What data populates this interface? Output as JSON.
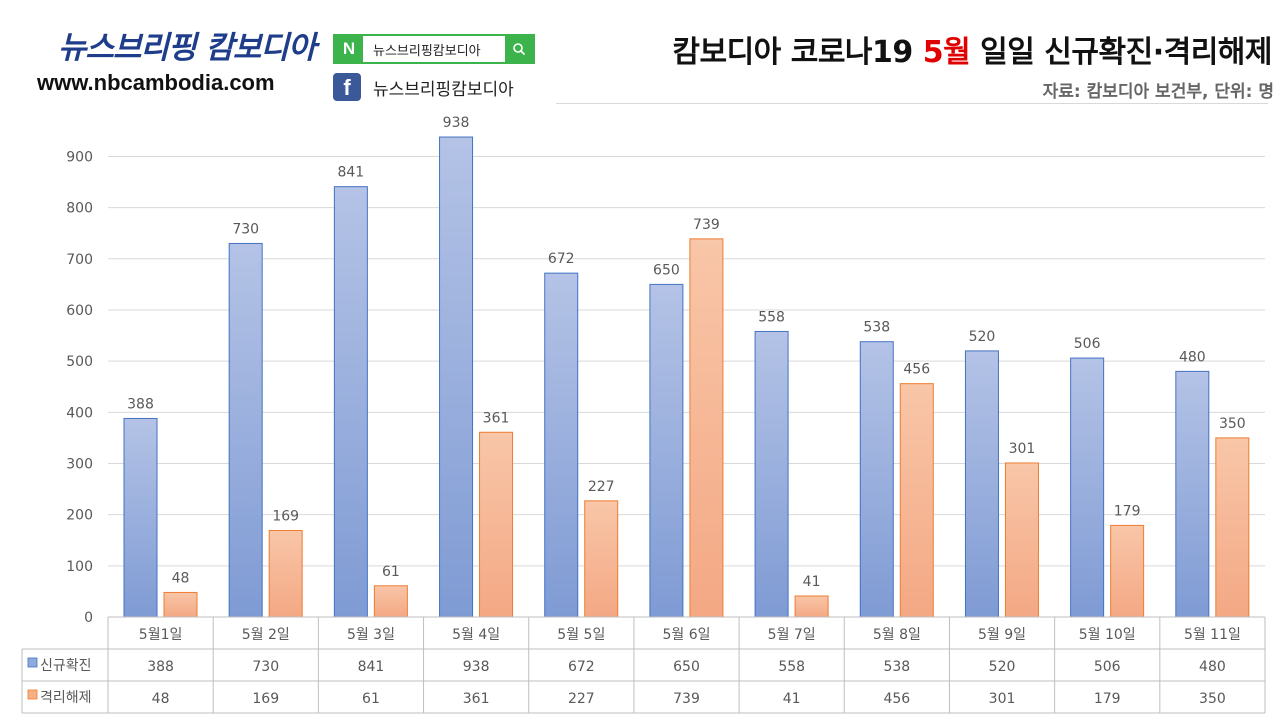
{
  "branding": {
    "title": "뉴스브리핑 캄보디아",
    "url": "www.nbcambodia.com",
    "naver_letter": "N",
    "naver_text": "뉴스브리핑캄보디아",
    "search_icon": "search-icon",
    "facebook_letter": "f",
    "facebook_text": "뉴스브리핑캄보디아"
  },
  "header": {
    "title_before": "캄보디아 코로나19 ",
    "title_highlight": "5월",
    "title_after": " 일일 신규확진·격리해제",
    "subtitle": "자료: 캄보디아 보건부, 단위: 명",
    "highlight_color": "#e00000"
  },
  "chart_data": {
    "type": "bar",
    "categories": [
      "5월1일",
      "5월 2일",
      "5월 3일",
      "5월 4일",
      "5월 5일",
      "5월 6일",
      "5월 7일",
      "5월 8일",
      "5월 9일",
      "5월 10일",
      "5월 11일"
    ],
    "series": [
      {
        "name": "신규확진",
        "values": [
          388,
          730,
          841,
          938,
          672,
          650,
          558,
          538,
          520,
          506,
          480
        ],
        "color": "#8faadc"
      },
      {
        "name": "격리해제",
        "values": [
          48,
          169,
          61,
          361,
          227,
          739,
          41,
          456,
          301,
          179,
          350
        ],
        "color": "#f4b183"
      }
    ],
    "yticks": [
      0,
      100,
      200,
      300,
      400,
      500,
      600,
      700,
      800,
      900
    ],
    "ylim": [
      0,
      900
    ],
    "grid": true,
    "data_table": true,
    "legend": "data-table"
  }
}
